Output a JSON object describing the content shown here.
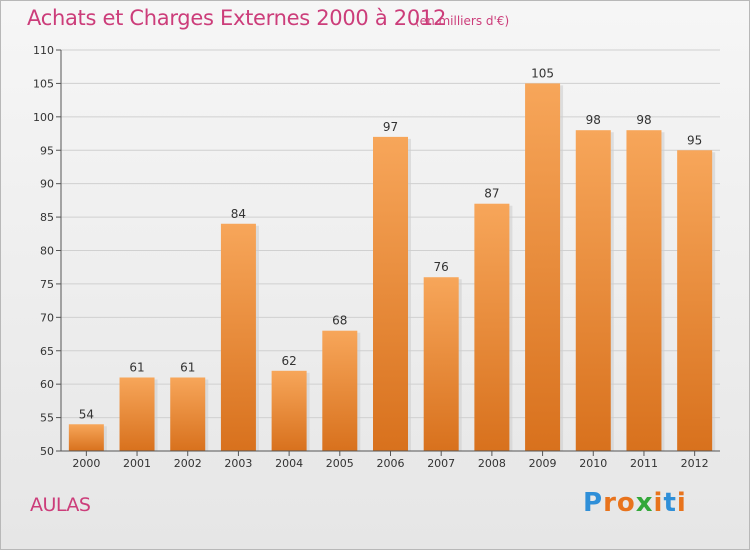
{
  "header": {
    "title": "Achats et Charges Externes 2000 à 2012",
    "subtitle": "(en milliers d'€)"
  },
  "footer": {
    "commune": "AULAS",
    "logo_text": "Proxiti",
    "logo_letters": [
      {
        "char": "P",
        "color": "#2f8fd8"
      },
      {
        "char": "r",
        "color": "#e8731c"
      },
      {
        "char": "o",
        "color": "#e8731c"
      },
      {
        "char": "x",
        "color": "#33a83a"
      },
      {
        "char": "i",
        "color": "#e8731c"
      },
      {
        "char": "t",
        "color": "#2f8fd8"
      },
      {
        "char": "i",
        "color": "#e8731c"
      }
    ]
  },
  "colors": {
    "accent_text": "#cc3d7a",
    "bar_top": "#f7a65a",
    "bar_bottom": "#d8711d"
  },
  "chart_data": {
    "type": "bar",
    "title": "Achats et Charges Externes 2000 à 2012",
    "subtitle": "(en milliers d'€)",
    "categories": [
      "2000",
      "2001",
      "2002",
      "2003",
      "2004",
      "2005",
      "2006",
      "2007",
      "2008",
      "2009",
      "2010",
      "2011",
      "2012"
    ],
    "values": [
      54,
      61,
      61,
      84,
      62,
      68,
      97,
      76,
      87,
      105,
      98,
      98,
      95
    ],
    "ylim": [
      50,
      110
    ],
    "yticks": [
      50,
      55,
      60,
      65,
      70,
      75,
      80,
      85,
      90,
      95,
      100,
      105,
      110
    ],
    "grid": true,
    "xlabel": "",
    "ylabel": ""
  }
}
